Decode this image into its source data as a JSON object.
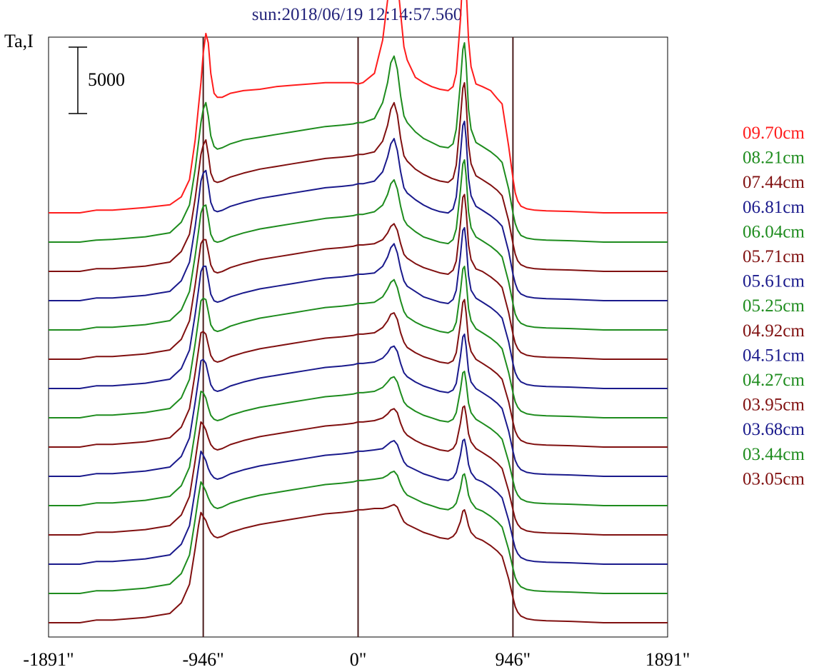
{
  "chart_data": {
    "type": "line",
    "title": "sun:2018/06/19 12:14:57.560",
    "ylabel": "Ta,I",
    "scale_bar_label": "5000",
    "scale_bar_value": 5000,
    "xlim": [
      -1891,
      1891
    ],
    "x_ticks": [
      {
        "value": -1891,
        "label": "-1891\""
      },
      {
        "value": -946,
        "label": "-946\""
      },
      {
        "value": 0,
        "label": "0\""
      },
      {
        "value": 946,
        "label": "946\""
      },
      {
        "value": 1891,
        "label": "1891\""
      }
    ],
    "reference_lines": [
      -946,
      0,
      946
    ],
    "x": [
      -1891,
      -1700,
      -1600,
      -1500,
      -1300,
      -1150,
      -1080,
      -1030,
      -995,
      -975,
      -960,
      -946,
      -930,
      -915,
      -900,
      -880,
      -860,
      -830,
      -780,
      -700,
      -600,
      -500,
      -400,
      -300,
      -200,
      -100,
      -30,
      0,
      30,
      100,
      150,
      180,
      200,
      220,
      240,
      260,
      280,
      300,
      350,
      400,
      450,
      500,
      550,
      580,
      600,
      625,
      640,
      650,
      660,
      675,
      690,
      720,
      760,
      810,
      850,
      880,
      920,
      946,
      960,
      975,
      995,
      1030,
      1080,
      1150,
      1300,
      1500,
      1600,
      1700,
      1891
    ],
    "peak_x": {
      "limb_left": -946,
      "source_a": 220,
      "source_b": 650
    },
    "series": [
      {
        "name": "09.70cm",
        "color": "#ff1c1c",
        "baseline": 0,
        "values": [
          0,
          0,
          200,
          200,
          400,
          600,
          1200,
          2500,
          5500,
          8000,
          9800,
          12000,
          13500,
          12800,
          10500,
          9000,
          8700,
          8700,
          9000,
          9200,
          9300,
          9500,
          9600,
          9700,
          9800,
          9800,
          9800,
          9700,
          9800,
          10500,
          13000,
          16000,
          18500,
          19000,
          17500,
          15000,
          12500,
          11500,
          10200,
          9800,
          9500,
          9300,
          9200,
          9500,
          10500,
          14500,
          18000,
          18500,
          17000,
          13000,
          11000,
          9700,
          9500,
          9200,
          8600,
          8200,
          5000,
          2600,
          1500,
          900,
          500,
          300,
          200,
          150,
          100,
          0,
          0,
          0,
          0
        ]
      },
      {
        "name": "08.21cm",
        "color": "#1e8c1e",
        "baseline": 0,
        "values": [
          0,
          0,
          150,
          200,
          400,
          700,
          1500,
          2800,
          5500,
          7500,
          9000,
          10000,
          10500,
          9500,
          8000,
          7200,
          7000,
          7100,
          7400,
          7700,
          7900,
          8100,
          8300,
          8500,
          8700,
          8800,
          8900,
          9000,
          9000,
          9300,
          10500,
          12000,
          13500,
          14000,
          13000,
          11000,
          9500,
          9000,
          8300,
          7800,
          7500,
          7200,
          7100,
          7400,
          8500,
          12000,
          14500,
          15000,
          13500,
          10000,
          8500,
          7500,
          7200,
          6800,
          6400,
          6000,
          4000,
          2200,
          1400,
          900,
          500,
          300,
          200,
          150,
          100,
          0,
          0,
          0,
          0
        ]
      },
      {
        "name": "07.44cm",
        "color": "#801010",
        "baseline": 0,
        "values": [
          0,
          0,
          200,
          200,
          400,
          700,
          1500,
          2800,
          5500,
          7400,
          8800,
          9500,
          9900,
          8800,
          7400,
          6800,
          6700,
          6800,
          7100,
          7400,
          7700,
          7900,
          8100,
          8300,
          8500,
          8600,
          8700,
          8800,
          8800,
          9000,
          9800,
          11000,
          12200,
          12700,
          11800,
          10000,
          8700,
          8300,
          7700,
          7300,
          7000,
          6800,
          6700,
          7000,
          8000,
          11500,
          13800,
          14200,
          12800,
          9500,
          8100,
          7200,
          6900,
          6500,
          6100,
          5700,
          3800,
          2100,
          1300,
          800,
          500,
          300,
          200,
          150,
          100,
          0,
          0,
          0,
          0
        ]
      },
      {
        "name": "06.81cm",
        "color": "#1a1a8c",
        "baseline": 0,
        "values": [
          0,
          0,
          200,
          200,
          400,
          700,
          1500,
          2900,
          5600,
          7500,
          9000,
          9600,
          9800,
          8700,
          7400,
          6800,
          6700,
          6800,
          7100,
          7400,
          7700,
          7900,
          8100,
          8300,
          8500,
          8600,
          8700,
          8800,
          8800,
          9000,
          9700,
          10800,
          11800,
          12200,
          11300,
          9700,
          8500,
          8100,
          7600,
          7200,
          6900,
          6700,
          6600,
          6900,
          7800,
          11000,
          13200,
          13500,
          12200,
          9200,
          7900,
          7100,
          6800,
          6400,
          6000,
          5600,
          3700,
          2000,
          1300,
          800,
          500,
          300,
          200,
          150,
          100,
          0,
          0,
          0,
          0
        ]
      },
      {
        "name": "06.04cm",
        "color": "#1e8c1e",
        "baseline": 0,
        "values": [
          0,
          0,
          200,
          200,
          400,
          700,
          1500,
          2900,
          5600,
          7400,
          8800,
          9300,
          9400,
          8400,
          7200,
          6700,
          6600,
          6700,
          7000,
          7300,
          7600,
          7800,
          8000,
          8200,
          8400,
          8500,
          8600,
          8700,
          8700,
          8900,
          9400,
          10200,
          11000,
          11300,
          10600,
          9300,
          8300,
          7900,
          7400,
          7000,
          6800,
          6600,
          6500,
          6800,
          7600,
          10500,
          12500,
          12800,
          11600,
          8900,
          7700,
          7000,
          6700,
          6300,
          5900,
          5500,
          3600,
          2000,
          1200,
          800,
          500,
          300,
          200,
          150,
          100,
          0,
          0,
          0,
          0
        ]
      },
      {
        "name": "05.71cm",
        "color": "#801010",
        "baseline": 0,
        "values": [
          0,
          0,
          200,
          200,
          400,
          700,
          1500,
          2900,
          5600,
          7400,
          8700,
          9000,
          9000,
          8100,
          7100,
          6600,
          6500,
          6600,
          6900,
          7200,
          7500,
          7700,
          7900,
          8100,
          8300,
          8400,
          8500,
          8600,
          8600,
          8700,
          9000,
          9500,
          10000,
          10200,
          9700,
          8700,
          7900,
          7600,
          7200,
          6900,
          6700,
          6500,
          6400,
          6700,
          7400,
          10200,
          12200,
          12400,
          11200,
          8600,
          7500,
          6800,
          6600,
          6200,
          5800,
          5400,
          3500,
          1900,
          1200,
          800,
          500,
          300,
          200,
          150,
          100,
          0,
          0,
          0,
          0
        ]
      },
      {
        "name": "05.61cm",
        "color": "#1a1a8c",
        "baseline": 0,
        "values": [
          0,
          0,
          200,
          200,
          400,
          700,
          1500,
          2900,
          5600,
          7400,
          8800,
          9200,
          9200,
          8200,
          7100,
          6600,
          6500,
          6600,
          6900,
          7200,
          7500,
          7700,
          7900,
          8100,
          8300,
          8400,
          8500,
          8600,
          8600,
          8700,
          9200,
          9900,
          10600,
          10900,
          10200,
          9000,
          8100,
          7700,
          7300,
          6900,
          6700,
          6500,
          6400,
          6700,
          7400,
          10000,
          11900,
          12100,
          11000,
          8500,
          7400,
          6800,
          6500,
          6100,
          5700,
          5300,
          3500,
          1900,
          1200,
          800,
          500,
          300,
          200,
          150,
          100,
          0,
          0,
          0,
          0
        ]
      },
      {
        "name": "05.25cm",
        "color": "#1e8c1e",
        "baseline": 0,
        "values": [
          0,
          0,
          200,
          200,
          400,
          700,
          1500,
          2900,
          5600,
          7400,
          8800,
          9000,
          8900,
          8000,
          7000,
          6600,
          6500,
          6600,
          6900,
          7200,
          7500,
          7700,
          7900,
          8100,
          8300,
          8400,
          8500,
          8600,
          8600,
          8700,
          9100,
          9700,
          10200,
          10400,
          9800,
          8800,
          8000,
          7600,
          7200,
          6900,
          6700,
          6500,
          6400,
          6600,
          7200,
          9500,
          11200,
          11400,
          10400,
          8200,
          7300,
          6700,
          6400,
          6000,
          5600,
          5200,
          3400,
          1900,
          1200,
          800,
          500,
          300,
          200,
          150,
          100,
          0,
          0,
          0,
          0
        ]
      },
      {
        "name": "04.92cm",
        "color": "#801010",
        "baseline": 0,
        "values": [
          0,
          0,
          200,
          200,
          400,
          700,
          1500,
          2900,
          5600,
          7300,
          8600,
          8700,
          8500,
          7700,
          6900,
          6500,
          6400,
          6500,
          6800,
          7100,
          7400,
          7600,
          7800,
          8000,
          8200,
          8300,
          8400,
          8500,
          8500,
          8600,
          9000,
          9500,
          10000,
          10100,
          9600,
          8600,
          7900,
          7500,
          7100,
          6800,
          6600,
          6400,
          6300,
          6500,
          7100,
          9300,
          10900,
          11100,
          10100,
          8000,
          7200,
          6600,
          6300,
          5900,
          5500,
          5100,
          3400,
          1900,
          1200,
          800,
          500,
          300,
          200,
          150,
          100,
          0,
          0,
          0,
          0
        ]
      },
      {
        "name": "04.51cm",
        "color": "#1a1a8c",
        "baseline": 0,
        "values": [
          0,
          0,
          200,
          200,
          400,
          700,
          1500,
          2900,
          5600,
          7300,
          8700,
          8800,
          8500,
          7700,
          6900,
          6500,
          6400,
          6500,
          6800,
          7100,
          7400,
          7600,
          7800,
          8000,
          8200,
          8300,
          8400,
          8500,
          8500,
          8600,
          8900,
          9300,
          9700,
          9800,
          9400,
          8500,
          7800,
          7500,
          7100,
          6800,
          6600,
          6400,
          6300,
          6500,
          7000,
          9000,
          10500,
          10700,
          9800,
          7900,
          7100,
          6600,
          6300,
          5900,
          5500,
          5100,
          3400,
          1900,
          1200,
          800,
          500,
          300,
          200,
          150,
          100,
          0,
          0,
          0,
          0
        ]
      },
      {
        "name": "04.27cm",
        "color": "#1e8c1e",
        "baseline": 0,
        "values": [
          0,
          0,
          200,
          200,
          400,
          700,
          1500,
          2900,
          5600,
          7300,
          8600,
          8500,
          8100,
          7400,
          6800,
          6500,
          6400,
          6500,
          6800,
          7100,
          7400,
          7600,
          7800,
          8000,
          8200,
          8300,
          8400,
          8500,
          8500,
          8600,
          8900,
          9300,
          9600,
          9700,
          9300,
          8500,
          7800,
          7500,
          7100,
          6800,
          6600,
          6400,
          6300,
          6500,
          7000,
          8700,
          10000,
          10100,
          9300,
          7700,
          7000,
          6500,
          6200,
          5800,
          5400,
          5000,
          3300,
          1900,
          1200,
          800,
          500,
          300,
          200,
          150,
          100,
          0,
          0,
          0,
          0
        ]
      },
      {
        "name": "03.95cm",
        "color": "#801010",
        "baseline": 0,
        "values": [
          0,
          0,
          200,
          200,
          400,
          700,
          1500,
          2900,
          5600,
          7300,
          8500,
          8300,
          7900,
          7300,
          6800,
          6500,
          6400,
          6500,
          6800,
          7100,
          7400,
          7600,
          7800,
          8000,
          8200,
          8300,
          8400,
          8500,
          8500,
          8600,
          8800,
          9100,
          9400,
          9500,
          9200,
          8400,
          7800,
          7500,
          7100,
          6800,
          6600,
          6400,
          6300,
          6500,
          6900,
          8400,
          9600,
          9700,
          9000,
          7600,
          7000,
          6500,
          6200,
          5800,
          5400,
          5000,
          3300,
          1900,
          1200,
          800,
          500,
          300,
          200,
          150,
          100,
          0,
          0,
          0,
          0
        ]
      },
      {
        "name": "03.68cm",
        "color": "#1a1a8c",
        "baseline": 0,
        "values": [
          0,
          0,
          200,
          200,
          400,
          700,
          1500,
          2900,
          5600,
          7300,
          8500,
          8200,
          7800,
          7200,
          6800,
          6500,
          6400,
          6500,
          6800,
          7100,
          7400,
          7600,
          7800,
          8000,
          8200,
          8300,
          8400,
          8500,
          8500,
          8600,
          8700,
          9000,
          9200,
          9300,
          9000,
          8300,
          7700,
          7400,
          7100,
          6800,
          6600,
          6400,
          6300,
          6500,
          6900,
          8200,
          9300,
          9400,
          8800,
          7500,
          6900,
          6400,
          6200,
          5800,
          5400,
          5000,
          3300,
          1900,
          1200,
          800,
          500,
          300,
          200,
          150,
          100,
          0,
          0,
          0,
          0
        ]
      },
      {
        "name": "03.44cm",
        "color": "#1e8c1e",
        "baseline": 0,
        "values": [
          0,
          0,
          200,
          200,
          400,
          700,
          1500,
          2900,
          5600,
          7300,
          8400,
          8100,
          7700,
          7200,
          6800,
          6500,
          6400,
          6500,
          6800,
          7100,
          7400,
          7600,
          7800,
          8000,
          8200,
          8300,
          8400,
          8500,
          8500,
          8600,
          8700,
          8900,
          9100,
          9200,
          8900,
          8200,
          7700,
          7400,
          7100,
          6800,
          6600,
          6400,
          6300,
          6500,
          6800,
          7900,
          8900,
          9000,
          8500,
          7400,
          6900,
          6400,
          6200,
          5800,
          5400,
          5000,
          3300,
          1900,
          1200,
          800,
          500,
          300,
          200,
          150,
          100,
          0,
          0,
          0,
          0
        ]
      },
      {
        "name": "03.05cm",
        "color": "#801010",
        "baseline": 0,
        "values": [
          0,
          0,
          200,
          200,
          400,
          700,
          1500,
          2900,
          5600,
          7300,
          8300,
          8000,
          7700,
          7200,
          6800,
          6500,
          6400,
          6500,
          6800,
          7100,
          7400,
          7600,
          7800,
          8000,
          8200,
          8300,
          8400,
          8500,
          8500,
          8600,
          8600,
          8700,
          8800,
          8900,
          8700,
          8100,
          7600,
          7400,
          7100,
          6800,
          6600,
          6400,
          6300,
          6500,
          6800,
          7600,
          8400,
          8500,
          8100,
          7300,
          6800,
          6400,
          6200,
          5800,
          5400,
          5000,
          3300,
          1900,
          1200,
          800,
          500,
          300,
          200,
          150,
          100,
          0,
          0,
          0,
          0
        ]
      }
    ]
  }
}
